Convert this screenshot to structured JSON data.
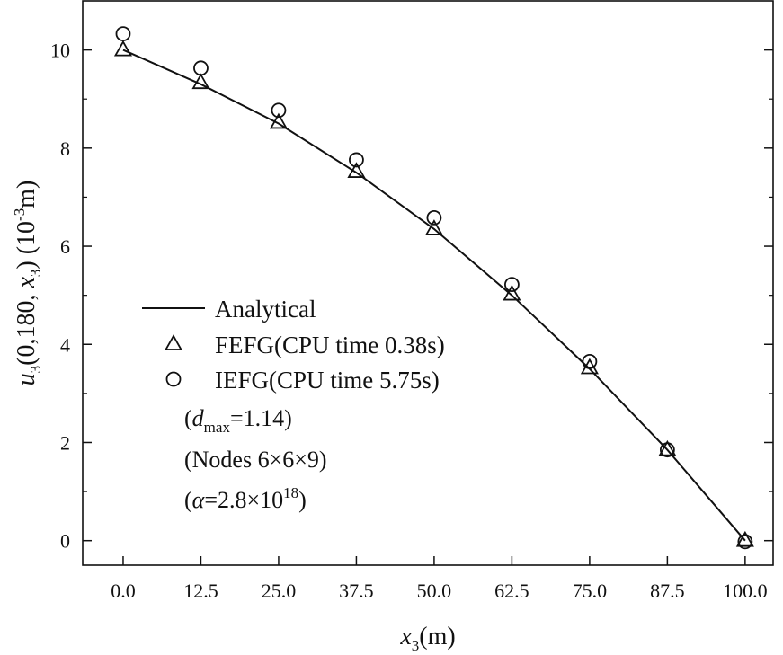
{
  "chart_data": {
    "type": "line",
    "xlabel": {
      "var": "x",
      "sub": "3",
      "unit": "(m)"
    },
    "ylabel": {
      "var": "u",
      "sub": "3",
      "args_prefix": "(0,180, ",
      "args_var": "x",
      "args_sub": "3",
      "args_suffix": ") (10",
      "exp": "-3",
      "unit": "m)"
    },
    "xlim": [
      -6.5,
      104.5
    ],
    "ylim": [
      -0.5,
      11.0
    ],
    "x_ticks": [
      0.0,
      12.5,
      25.0,
      37.5,
      50.0,
      62.5,
      75.0,
      87.5,
      100.0
    ],
    "x_tick_labels": [
      "0.0",
      "12.5",
      "25.0",
      "37.5",
      "50.0",
      "62.5",
      "75.0",
      "87.5",
      "100.0"
    ],
    "y_ticks": [
      0,
      2,
      4,
      6,
      8,
      10
    ],
    "y_tick_labels": [
      "0",
      "2",
      "4",
      "6",
      "8",
      "10"
    ],
    "grid": false,
    "legend_position": "bottom-left",
    "series": [
      {
        "name": "Analytical",
        "style": "line",
        "x": [
          0.0,
          12.5,
          25.0,
          37.5,
          50.0,
          62.5,
          75.0,
          87.5,
          100.0
        ],
        "y": [
          10.0,
          9.3,
          8.5,
          7.5,
          6.35,
          5.0,
          3.5,
          1.85,
          0.0
        ]
      },
      {
        "name": "FEFG(CPU time 0.38s)",
        "style": "triangle",
        "x": [
          0.0,
          12.5,
          25.0,
          37.5,
          50.0,
          62.5,
          75.0,
          87.5,
          100.0
        ],
        "y": [
          10.0,
          9.33,
          8.52,
          7.52,
          6.35,
          5.02,
          3.52,
          1.85,
          0.0
        ]
      },
      {
        "name": "IEFG(CPU time 5.75s)",
        "style": "circle",
        "x": [
          0.0,
          12.5,
          25.0,
          37.5,
          50.0,
          62.5,
          75.0,
          87.5,
          100.0
        ],
        "y": [
          10.33,
          9.63,
          8.77,
          7.76,
          6.58,
          5.22,
          3.65,
          1.85,
          -0.02
        ]
      }
    ],
    "annotations": {
      "dmax": {
        "open": "(",
        "var": "d",
        "sub": "max",
        "rest": "=1.14)"
      },
      "nodes": "(Nodes 6×6×9)",
      "alpha": {
        "open": "(",
        "var": "α",
        "rest": "=2.8×10",
        "exp": "18",
        "close": ")"
      }
    }
  }
}
